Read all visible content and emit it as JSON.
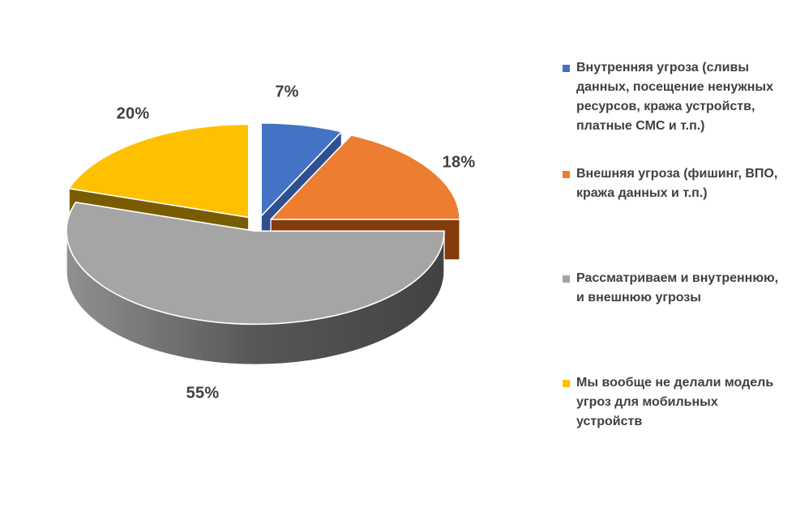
{
  "page": {
    "background": "#FFFFFF"
  },
  "chart_data": {
    "type": "pie",
    "style": "3d-exploded-pie",
    "title": "",
    "legend_position": "right",
    "label_color": "#404040",
    "slices": [
      {
        "legend_label": "Внутренняя угроза (сливы данных, посещение ненужных ресурсов, кража устройств, платные СМС и т.п.)",
        "value_pct": 7,
        "data_label": "7%",
        "color": "#4472C4",
        "side_color": "#2E5090"
      },
      {
        "legend_label": "Внешняя угроза (фишинг, ВПО, кража данных и т.п.)",
        "value_pct": 18,
        "data_label": "18%",
        "color": "#ED7D31",
        "side_color": "#833C0C"
      },
      {
        "legend_label": "Рассматриваем и внутреннюю, и внешнюю угрозы",
        "value_pct": 55,
        "data_label": "55%",
        "color": "#A5A5A5",
        "side_color": "#4E4E4E"
      },
      {
        "legend_label": "Мы вообще не делали модель угроз для мобильных устройств",
        "value_pct": 20,
        "data_label": "20%",
        "color": "#FFC000",
        "side_color": "#7A5C00"
      }
    ]
  }
}
